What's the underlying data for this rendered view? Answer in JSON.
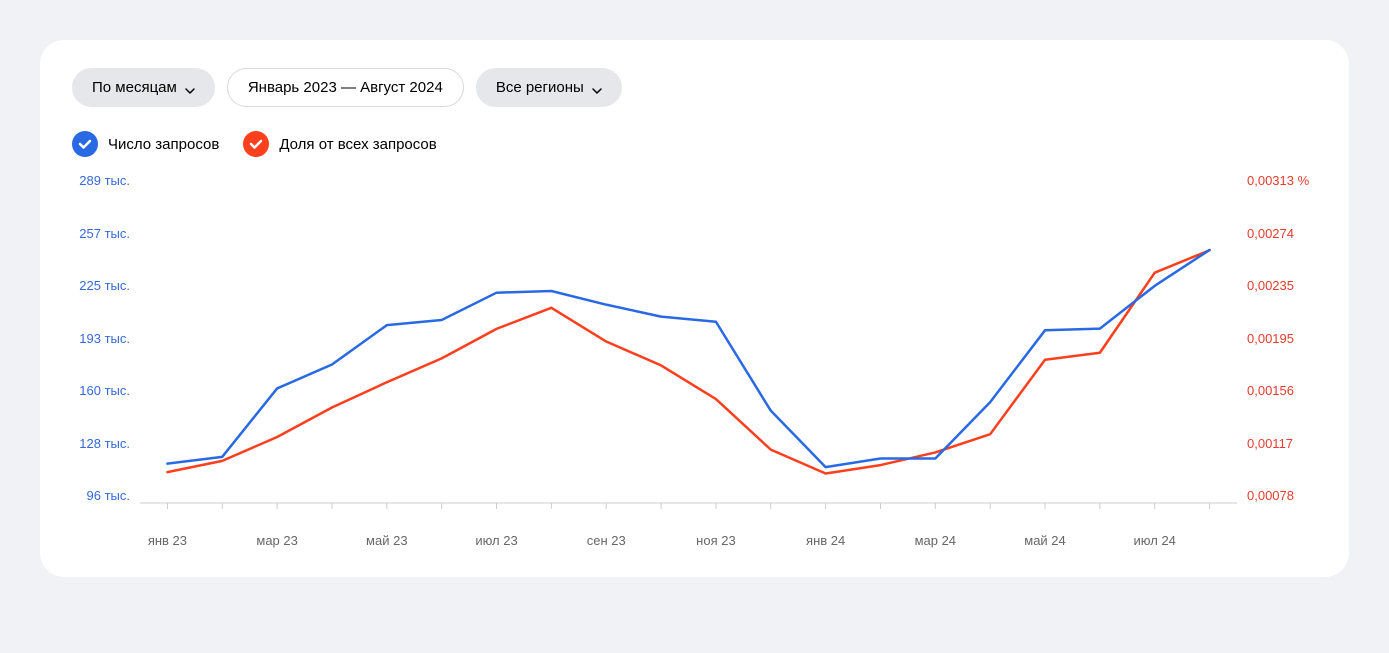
{
  "controls": {
    "period": "По месяцам",
    "range": "Январь 2023 — Август 2024",
    "region": "Все регионы"
  },
  "legend": {
    "series1": {
      "label": "Число запросов",
      "color": "#2969e3",
      "checked": true
    },
    "series2": {
      "label": "Доля от всех запросов",
      "color": "#fc3f1d",
      "checked": true
    }
  },
  "chart": {
    "type": "line",
    "background_color": "#ffffff",
    "grid_color": "#e0e0e0",
    "axis_color": "#cccccc",
    "line_width": 2.5,
    "y_left": {
      "color": "#3668d9",
      "ticks": [
        "289 тыс.",
        "257 тыс.",
        "225 тыс.",
        "193 тыс.",
        "160 тыс.",
        "128 тыс.",
        "96 тыс."
      ],
      "min": 96,
      "max": 289
    },
    "y_right": {
      "color": "#e63c2f",
      "ticks": [
        "0,00313 %",
        "0,00274",
        "0,00235",
        "0,00195",
        "0,00156",
        "0,00117",
        "0,00078"
      ],
      "min": 0.00078,
      "max": 0.00313
    },
    "x": {
      "labels": [
        "янв 23",
        "мар 23",
        "май 23",
        "июл 23",
        "сен 23",
        "ноя 23",
        "янв 24",
        "мар 24",
        "май 24",
        "июл 24"
      ],
      "n_points": 20
    },
    "series1_values": [
      119,
      123,
      163,
      177,
      200,
      203,
      219,
      220,
      212,
      205,
      202,
      150,
      117,
      122,
      122,
      155,
      197,
      198,
      223,
      244
    ],
    "series2_values": [
      0.001,
      0.00108,
      0.00125,
      0.00146,
      0.00164,
      0.00181,
      0.00202,
      0.00217,
      0.00193,
      0.00176,
      0.00152,
      0.00116,
      0.00099,
      0.00105,
      0.00114,
      0.00127,
      0.0018,
      0.00185,
      0.00242,
      0.00258
    ]
  }
}
